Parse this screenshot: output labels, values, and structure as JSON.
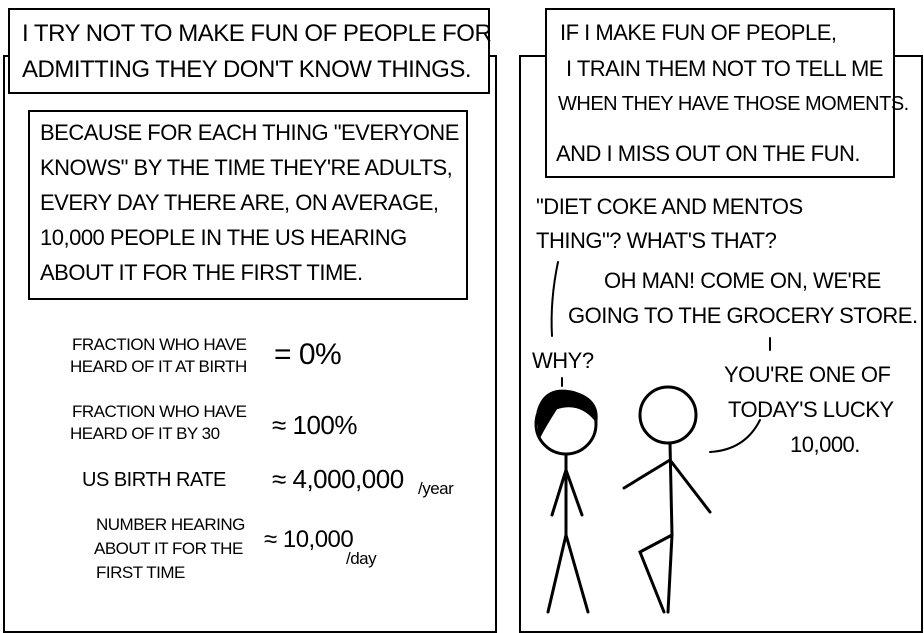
{
  "panel1": {
    "caption": [
      "I TRY NOT TO MAKE FUN OF PEOPLE FOR",
      "ADMITTING THEY DON'T KNOW THINGS."
    ],
    "explanation": [
      "BECAUSE FOR EACH THING \"EVERYONE",
      "KNOWS\" BY THE TIME THEY'RE ADULTS,",
      "EVERY DAY THERE ARE, ON AVERAGE,",
      "10,000 PEOPLE IN THE US HEARING",
      "ABOUT IT FOR THE FIRST TIME."
    ],
    "math": {
      "birth_label": [
        "FRACTION WHO HAVE",
        "HEARD OF IT AT BIRTH"
      ],
      "birth_value": "= 0%",
      "thirty_label": [
        "FRACTION WHO HAVE",
        "HEARD OF IT BY 30"
      ],
      "thirty_value": "≈ 100%",
      "rate_label": "US BIRTH RATE",
      "rate_value": "≈ 4,000,000",
      "rate_unit": "/year",
      "hearing_label": [
        "NUMBER HEARING",
        "ABOUT IT FOR THE",
        "FIRST TIME"
      ],
      "hearing_value": "≈ 10,000",
      "hearing_unit": "/day"
    }
  },
  "panel2": {
    "caption": [
      "IF I MAKE FUN OF PEOPLE,",
      "I TRAIN THEM NOT TO TELL ME",
      "WHEN THEY HAVE THOSE MOMENTS.",
      "AND I MISS OUT ON THE FUN."
    ],
    "dialogue": {
      "friend_1": [
        "\"DIET COKE AND MENTOS",
        "THING\"? WHAT'S THAT?"
      ],
      "narrator_1": [
        "OH MAN!  COME ON, WE'RE",
        "GOING TO THE GROCERY STORE."
      ],
      "friend_2": "WHY?",
      "narrator_2": [
        "YOU'RE ONE OF",
        "TODAY'S LUCKY",
        "10,000."
      ]
    }
  }
}
